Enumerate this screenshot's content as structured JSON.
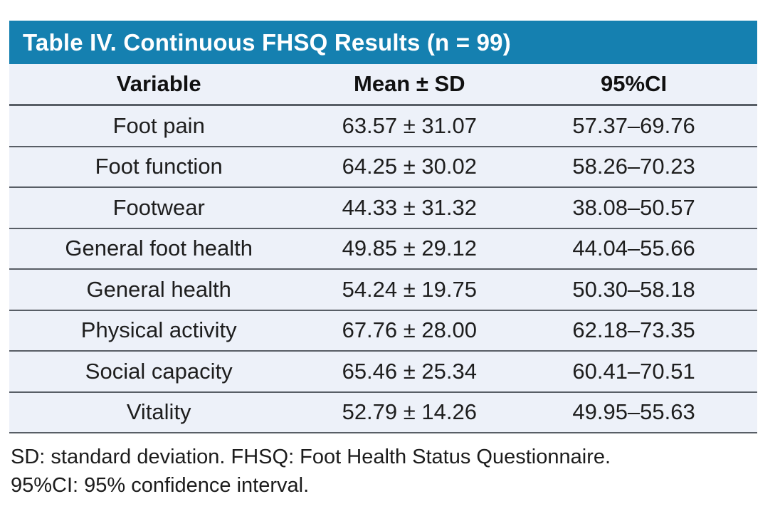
{
  "table": {
    "title": "Table IV. Continuous FHSQ Results (n = 99)",
    "columns": {
      "variable": "Variable",
      "mean_sd": "Mean ± SD",
      "ci": "95%CI"
    },
    "rows": [
      {
        "variable": "Foot pain",
        "mean_sd": "63.57 ± 31.07",
        "ci": "57.37–69.76"
      },
      {
        "variable": "Foot function",
        "mean_sd": "64.25 ± 30.02",
        "ci": "58.26–70.23"
      },
      {
        "variable": "Footwear",
        "mean_sd": "44.33 ± 31.32",
        "ci": "38.08–50.57"
      },
      {
        "variable": "General foot health",
        "mean_sd": "49.85 ± 29.12",
        "ci": "44.04–55.66"
      },
      {
        "variable": "General health",
        "mean_sd": "54.24 ± 19.75",
        "ci": "50.30–58.18"
      },
      {
        "variable": "Physical activity",
        "mean_sd": "67.76 ± 28.00",
        "ci": "62.18–73.35"
      },
      {
        "variable": "Social capacity",
        "mean_sd": "65.46 ± 25.34",
        "ci": "60.41–70.51"
      },
      {
        "variable": "Vitality",
        "mean_sd": "52.79 ± 14.26",
        "ci": "49.95–55.63"
      }
    ],
    "footnotes": [
      "SD: standard deviation. FHSQ: Foot Health Status Questionnaire.",
      "95%CI: 95% confidence interval."
    ]
  },
  "colors": {
    "title_bg": "#1580b0",
    "title_text": "#ffffff",
    "row_bg": "#edf1f9",
    "divider": "#585e66",
    "body_text": "#1e1e1e"
  }
}
